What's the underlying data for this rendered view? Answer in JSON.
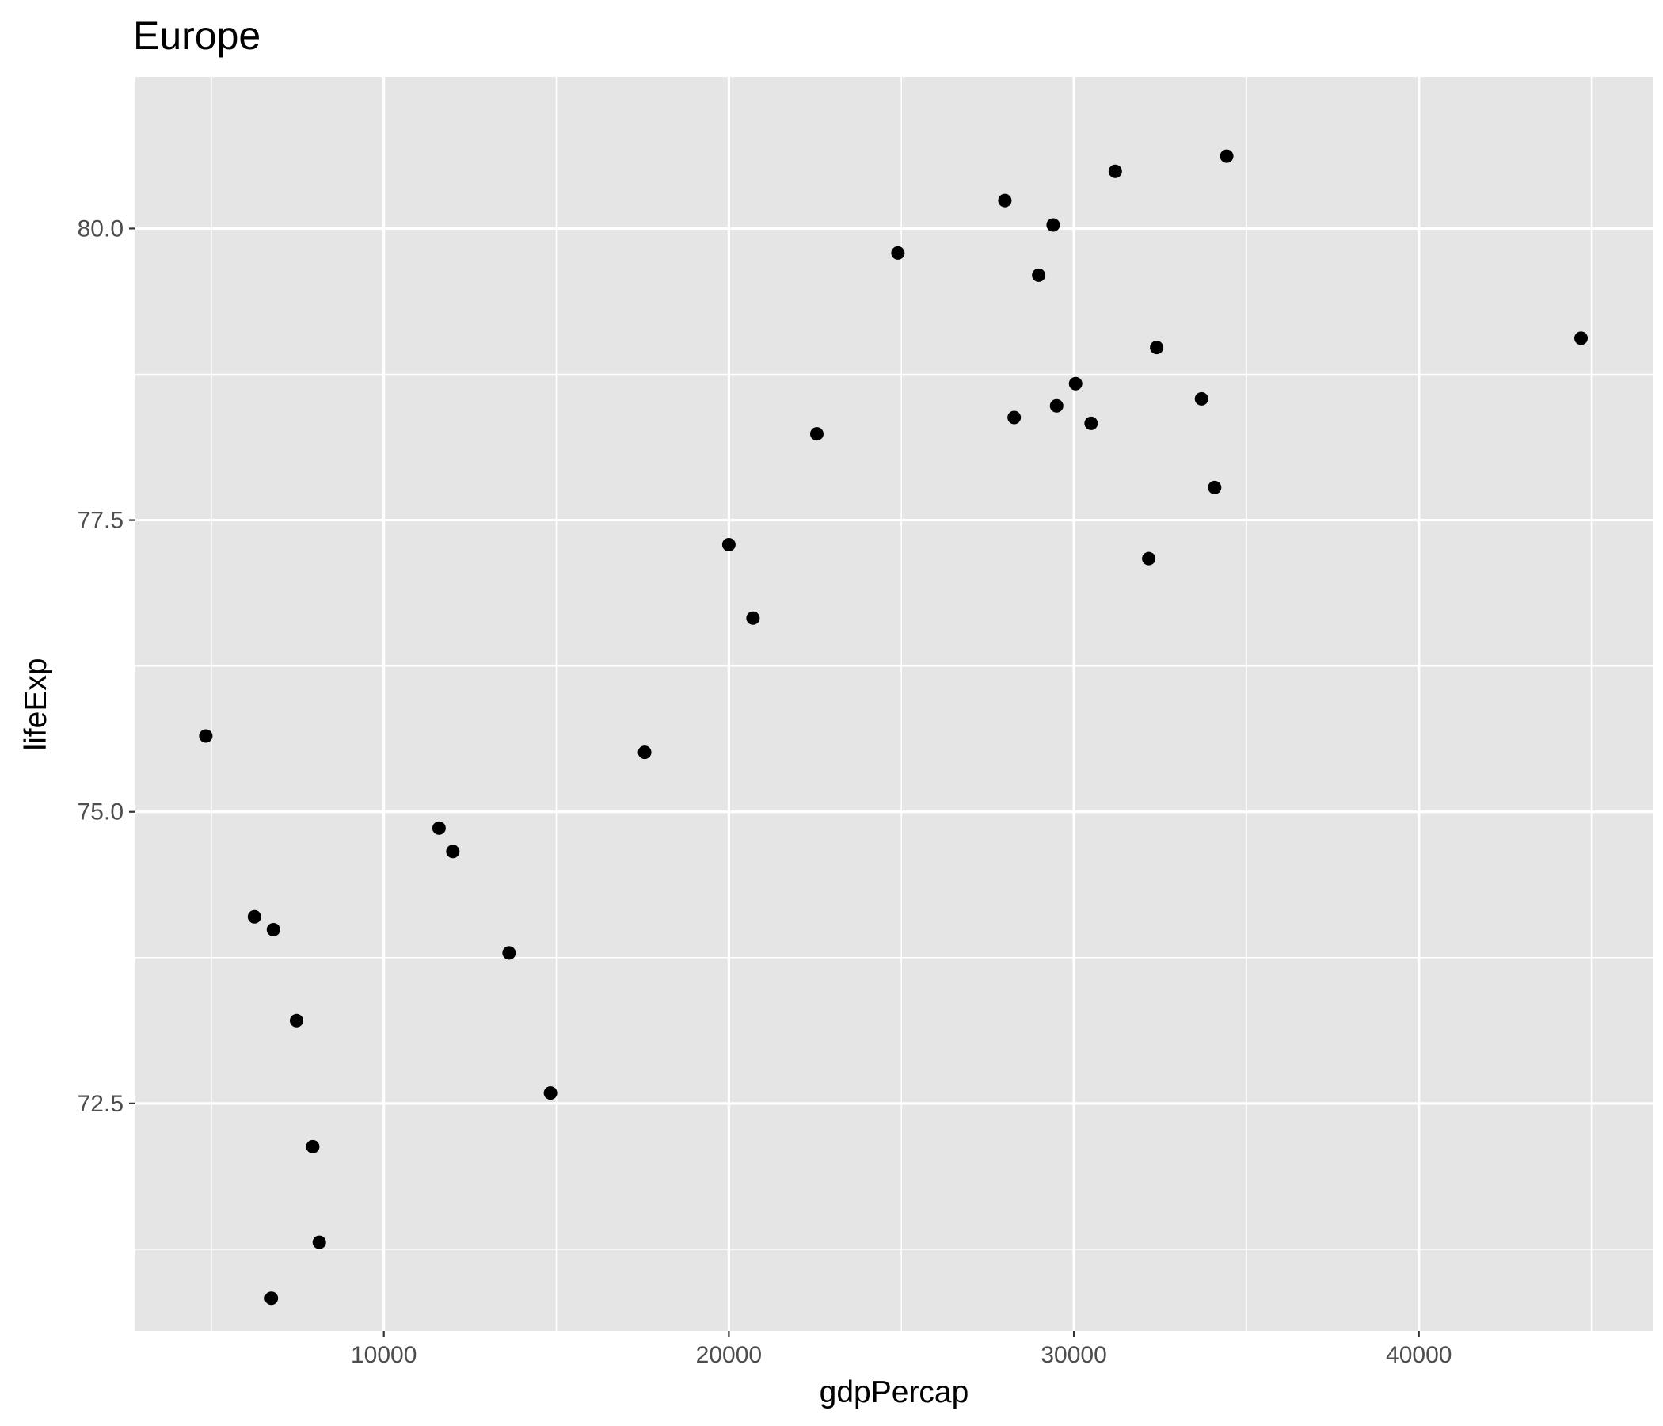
{
  "chart_data": {
    "type": "scatter",
    "title": "Europe",
    "xlabel": "gdpPercap",
    "ylabel": "lifeExp",
    "xlim": [
      2800,
      46800
    ],
    "ylim": [
      70.55,
      81.3
    ],
    "x_ticks": [
      10000,
      20000,
      30000,
      40000
    ],
    "x_tick_labels": [
      "10000",
      "20000",
      "30000",
      "40000"
    ],
    "y_ticks": [
      72.5,
      75.0,
      77.5,
      80.0
    ],
    "y_tick_labels": [
      "72.5",
      "75.0",
      "77.5",
      "80.0"
    ],
    "x_minor_ticks": [
      5000,
      15000,
      25000,
      35000,
      45000
    ],
    "y_minor_ticks": [
      71.25,
      73.75,
      76.25,
      78.75
    ],
    "grid": true,
    "legend": "none",
    "point_color": "#000000",
    "panel_background": "#e5e5e5",
    "grid_color": "#ffffff",
    "points": [
      {
        "x": 4840,
        "y": 75.65
      },
      {
        "x": 6250,
        "y": 74.1
      },
      {
        "x": 6800,
        "y": 73.99
      },
      {
        "x": 7470,
        "y": 73.21
      },
      {
        "x": 7940,
        "y": 72.13
      },
      {
        "x": 8130,
        "y": 71.31
      },
      {
        "x": 6740,
        "y": 70.83
      },
      {
        "x": 11600,
        "y": 74.86
      },
      {
        "x": 12000,
        "y": 74.66
      },
      {
        "x": 13630,
        "y": 73.79
      },
      {
        "x": 14830,
        "y": 72.59
      },
      {
        "x": 17560,
        "y": 75.51
      },
      {
        "x": 20000,
        "y": 77.29
      },
      {
        "x": 20700,
        "y": 76.66
      },
      {
        "x": 22550,
        "y": 78.24
      },
      {
        "x": 24900,
        "y": 79.79
      },
      {
        "x": 28000,
        "y": 80.24
      },
      {
        "x": 28270,
        "y": 78.38
      },
      {
        "x": 28980,
        "y": 79.6
      },
      {
        "x": 29400,
        "y": 80.03
      },
      {
        "x": 29500,
        "y": 78.48
      },
      {
        "x": 30050,
        "y": 78.67
      },
      {
        "x": 30500,
        "y": 78.33
      },
      {
        "x": 31200,
        "y": 80.49
      },
      {
        "x": 32170,
        "y": 77.17
      },
      {
        "x": 32400,
        "y": 78.98
      },
      {
        "x": 33700,
        "y": 78.54
      },
      {
        "x": 34080,
        "y": 77.78
      },
      {
        "x": 34430,
        "y": 80.62
      },
      {
        "x": 44700,
        "y": 79.06
      }
    ]
  }
}
